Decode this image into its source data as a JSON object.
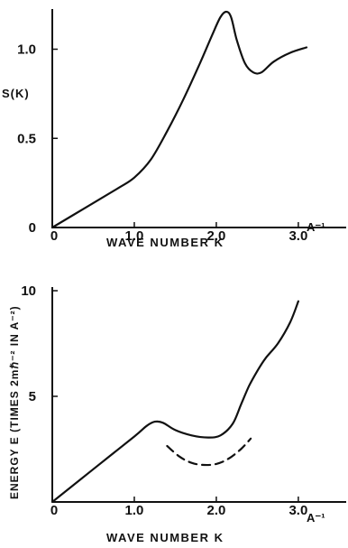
{
  "charts": [
    {
      "type": "line",
      "xlabel": "WAVE NUMBER K",
      "ylabel": "S(K)",
      "xlim": [
        0,
        3.1
      ],
      "ylim": [
        0,
        1.2
      ],
      "xticks": [
        "0",
        "1.0",
        "2.0",
        "3.0"
      ],
      "xunit": "A⁻¹",
      "yticks": [
        "0",
        "0.5",
        "1.0"
      ],
      "series": [
        {
          "style": "solid",
          "x": [
            0.0,
            0.4,
            0.8,
            1.0,
            1.2,
            1.4,
            1.6,
            1.8,
            1.95,
            2.05,
            2.12,
            2.18,
            2.25,
            2.35,
            2.45,
            2.55,
            2.7,
            2.9,
            3.1
          ],
          "y": [
            0.0,
            0.11,
            0.22,
            0.28,
            0.38,
            0.54,
            0.72,
            0.92,
            1.08,
            1.18,
            1.21,
            1.18,
            1.05,
            0.92,
            0.87,
            0.87,
            0.93,
            0.98,
            1.01
          ]
        }
      ]
    },
    {
      "type": "line",
      "xlabel": "WAVE NUMBER K",
      "ylabel": "ENERGY E (TIMES 2mℏ⁻² IN A⁻²)",
      "xlim": [
        0,
        3.1
      ],
      "ylim": [
        0,
        10
      ],
      "xticks": [
        "0",
        "1.0",
        "2.0",
        "3.0"
      ],
      "xunit": "A⁻¹",
      "yticks": [
        "5",
        "10"
      ],
      "series": [
        {
          "style": "solid",
          "x": [
            0.0,
            0.5,
            1.0,
            1.15,
            1.25,
            1.35,
            1.5,
            1.7,
            1.9,
            2.05,
            2.2,
            2.3,
            2.4,
            2.5,
            2.6,
            2.75,
            2.9,
            3.0
          ],
          "y": [
            0.0,
            1.55,
            3.1,
            3.6,
            3.8,
            3.75,
            3.4,
            3.15,
            3.05,
            3.15,
            3.7,
            4.6,
            5.5,
            6.2,
            6.8,
            7.5,
            8.5,
            9.5
          ]
        },
        {
          "style": "dashed",
          "x": [
            1.4,
            1.55,
            1.7,
            1.85,
            2.0,
            2.15,
            2.3,
            2.42
          ],
          "y": [
            2.65,
            2.15,
            1.85,
            1.75,
            1.8,
            2.05,
            2.5,
            3.0
          ]
        }
      ]
    }
  ],
  "chart_data": [
    {
      "type": "line",
      "xlabel": "WAVE NUMBER K",
      "ylabel": "S(K)",
      "xlim": [
        0,
        3.1
      ],
      "ylim": [
        0,
        1.2
      ]
    },
    {
      "type": "line",
      "xlabel": "WAVE NUMBER K",
      "ylabel": "ENERGY E (TIMES 2mℏ⁻² IN A⁻²)",
      "xlim": [
        0,
        3.1
      ],
      "ylim": [
        0,
        10
      ]
    }
  ]
}
